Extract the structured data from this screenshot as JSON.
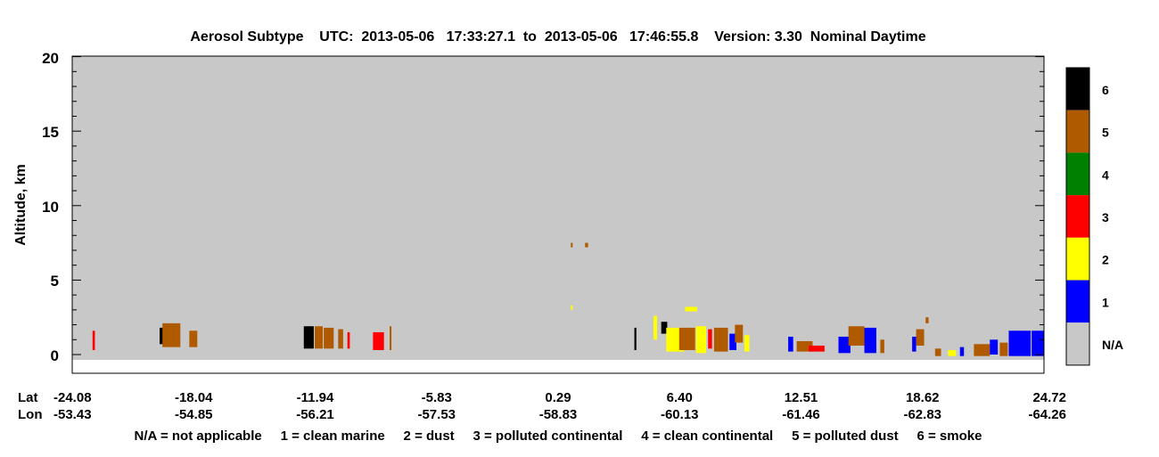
{
  "chart_data": {
    "type": "heatmap",
    "title": "Aerosol Subtype    UTC:  2013-05-06   17:33:27.1  to  2013-05-06   17:46:55.8    Version: 3.30  Nominal Daytime",
    "ylabel": "Altitude, km",
    "ylim": [
      -0.5,
      20.1
    ],
    "yticks": [
      "20",
      "15",
      "10",
      "5",
      "0"
    ],
    "x_row_labels": [
      "Lat",
      "Lon"
    ],
    "lat_ticks": [
      "-24.08",
      "-18.04",
      "-11.94",
      "-5.83",
      "0.29",
      "6.40",
      "12.51",
      "18.62",
      "24.72"
    ],
    "lon_ticks": [
      "-53.43",
      "-54.85",
      "-56.21",
      "-57.53",
      "-58.83",
      "-60.13",
      "-61.46",
      "-62.83",
      "-64.26"
    ],
    "colorbar": [
      {
        "label": "6",
        "color": "#000000"
      },
      {
        "label": "5",
        "color": "#b05a00"
      },
      {
        "label": "4",
        "color": "#008000"
      },
      {
        "label": "3",
        "color": "#ff0000"
      },
      {
        "label": "2",
        "color": "#ffff00"
      },
      {
        "label": "1",
        "color": "#0000ff"
      },
      {
        "label": "N/A",
        "color": "#c8c8c8"
      }
    ],
    "legend_text": "N/A = not applicable     1 = clean marine     2 = dust     3 = polluted continental     4 = clean continental     5 = polluted dust     6 = smoke",
    "background_color": "#c8c8c8",
    "features": [
      {
        "lat": -23.0,
        "w": 0.12,
        "alt": [
          0.3,
          1.6
        ],
        "cls": 3
      },
      {
        "lat": -19.6,
        "w": 0.18,
        "alt": [
          0.7,
          1.8
        ],
        "cls": 6
      },
      {
        "lat": -19.1,
        "w": 0.9,
        "alt": [
          0.5,
          2.1
        ],
        "cls": 5
      },
      {
        "lat": -18.0,
        "w": 0.4,
        "alt": [
          0.5,
          1.6
        ],
        "cls": 5
      },
      {
        "lat": -12.2,
        "w": 0.5,
        "alt": [
          0.4,
          1.9
        ],
        "cls": 6
      },
      {
        "lat": -11.7,
        "w": 0.4,
        "alt": [
          0.4,
          1.9
        ],
        "cls": 5
      },
      {
        "lat": -11.2,
        "w": 0.5,
        "alt": [
          0.4,
          1.8
        ],
        "cls": 5
      },
      {
        "lat": -10.6,
        "w": 0.25,
        "alt": [
          0.4,
          1.7
        ],
        "cls": 5
      },
      {
        "lat": -10.2,
        "w": 0.12,
        "alt": [
          0.4,
          1.5
        ],
        "cls": 3
      },
      {
        "lat": -8.7,
        "w": 0.55,
        "alt": [
          0.3,
          1.5
        ],
        "cls": 3
      },
      {
        "lat": -8.1,
        "w": 0.08,
        "alt": [
          0.3,
          1.9
        ],
        "cls": 5
      },
      {
        "lat": 1.0,
        "w": 0.08,
        "alt": [
          7.2,
          7.5
        ],
        "cls": 5
      },
      {
        "lat": 1.75,
        "w": 0.15,
        "alt": [
          7.2,
          7.5
        ],
        "cls": 5
      },
      {
        "lat": 1.0,
        "w": 0.08,
        "alt": [
          3.0,
          3.3
        ],
        "cls": 2
      },
      {
        "lat": 4.2,
        "w": 0.1,
        "alt": [
          0.3,
          1.8
        ],
        "cls": 6
      },
      {
        "lat": 5.2,
        "w": 0.18,
        "alt": [
          1.0,
          2.6
        ],
        "cls": 2
      },
      {
        "lat": 5.65,
        "w": 0.3,
        "alt": [
          1.4,
          2.2
        ],
        "cls": 6
      },
      {
        "lat": 6.2,
        "w": 0.9,
        "alt": [
          0.2,
          1.8
        ],
        "cls": 2
      },
      {
        "lat": 6.8,
        "w": 0.8,
        "alt": [
          0.3,
          1.8
        ],
        "cls": 5
      },
      {
        "lat": 7.0,
        "w": 0.6,
        "alt": [
          2.9,
          3.2
        ],
        "cls": 2
      },
      {
        "lat": 7.5,
        "w": 0.5,
        "alt": [
          0.1,
          1.9
        ],
        "cls": 2
      },
      {
        "lat": 7.95,
        "w": 0.2,
        "alt": [
          0.4,
          1.7
        ],
        "cls": 3
      },
      {
        "lat": 8.5,
        "w": 0.7,
        "alt": [
          0.2,
          1.8
        ],
        "cls": 5
      },
      {
        "lat": 9.1,
        "w": 0.35,
        "alt": [
          0.3,
          1.4
        ],
        "cls": 1
      },
      {
        "lat": 9.4,
        "w": 0.4,
        "alt": [
          0.8,
          2.0
        ],
        "cls": 5
      },
      {
        "lat": 9.8,
        "w": 0.25,
        "alt": [
          0.2,
          1.3
        ],
        "cls": 2
      },
      {
        "lat": 12.0,
        "w": 0.25,
        "alt": [
          0.2,
          1.2
        ],
        "cls": 1
      },
      {
        "lat": 12.7,
        "w": 0.8,
        "alt": [
          0.2,
          0.9
        ],
        "cls": 5
      },
      {
        "lat": 13.3,
        "w": 0.8,
        "alt": [
          0.2,
          0.6
        ],
        "cls": 3
      },
      {
        "lat": 14.7,
        "w": 0.6,
        "alt": [
          0.1,
          1.2
        ],
        "cls": 1
      },
      {
        "lat": 15.3,
        "w": 0.8,
        "alt": [
          0.6,
          1.9
        ],
        "cls": 5
      },
      {
        "lat": 16.0,
        "w": 0.6,
        "alt": [
          0.1,
          1.8
        ],
        "cls": 1
      },
      {
        "lat": 16.6,
        "w": 0.2,
        "alt": [
          0.1,
          1.0
        ],
        "cls": 5
      },
      {
        "lat": 18.2,
        "w": 0.2,
        "alt": [
          0.2,
          1.2
        ],
        "cls": 1
      },
      {
        "lat": 18.5,
        "w": 0.4,
        "alt": [
          0.6,
          1.7
        ],
        "cls": 5
      },
      {
        "lat": 18.85,
        "w": 0.15,
        "alt": [
          2.1,
          2.5
        ],
        "cls": 5
      },
      {
        "lat": 19.4,
        "w": 0.3,
        "alt": [
          -0.1,
          0.4
        ],
        "cls": 5
      },
      {
        "lat": 20.1,
        "w": 0.4,
        "alt": [
          -0.1,
          0.3
        ],
        "cls": 2
      },
      {
        "lat": 20.6,
        "w": 0.2,
        "alt": [
          -0.1,
          0.5
        ],
        "cls": 1
      },
      {
        "lat": 21.6,
        "w": 0.8,
        "alt": [
          -0.1,
          0.7
        ],
        "cls": 5
      },
      {
        "lat": 22.2,
        "w": 0.4,
        "alt": [
          0.0,
          1.0
        ],
        "cls": 1
      },
      {
        "lat": 22.7,
        "w": 0.4,
        "alt": [
          -0.1,
          0.8
        ],
        "cls": 5
      },
      {
        "lat": 23.5,
        "w": 1.1,
        "alt": [
          -0.1,
          1.6
        ],
        "cls": 1
      },
      {
        "lat": 24.4,
        "w": 0.6,
        "alt": [
          -0.1,
          1.6
        ],
        "cls": 1
      }
    ]
  }
}
